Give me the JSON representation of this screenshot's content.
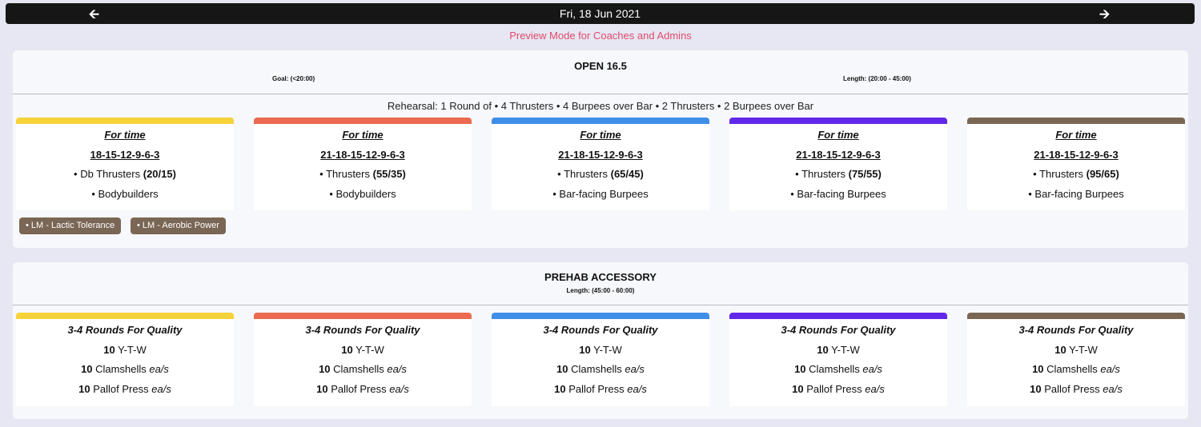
{
  "nav": {
    "date": "Fri, 18 Jun 2021",
    "prev_icon": "arrow-left-icon",
    "next_icon": "arrow-right-icon"
  },
  "preview_text": "Preview Mode for Coaches and Admins",
  "colors": {
    "yellow": "#f6d23a",
    "red": "#eb6a50",
    "blue": "#3f8ee8",
    "purple": "#6228e8",
    "brown": "#7a6654"
  },
  "open": {
    "title": "OPEN 16.5",
    "goal": "Goal: (<20:00)",
    "length": "Length: (20:00 - 45:00)",
    "rehearsal": "Rehearsal: 1 Round of • 4 Thrusters • 4 Burpees over Bar • 2 Thrusters • 2 Burpees over Bar",
    "cards": [
      {
        "format": "For time",
        "reps": "18-15-12-9-6-3",
        "move1_prefix": "• Db Thrusters",
        "move1_load": "(20/15)",
        "move2": "• Bodybuilders"
      },
      {
        "format": "For time",
        "reps": "21-18-15-12-9-6-3",
        "move1_prefix": "• Thrusters",
        "move1_load": "(55/35)",
        "move2": "• Bodybuilders"
      },
      {
        "format": "For time",
        "reps": "21-18-15-12-9-6-3",
        "move1_prefix": "• Thrusters",
        "move1_load": "(65/45)",
        "move2": "• Bar-facing Burpees"
      },
      {
        "format": "For time",
        "reps": "21-18-15-12-9-6-3",
        "move1_prefix": "• Thrusters",
        "move1_load": "(75/55)",
        "move2": "• Bar-facing Burpees"
      },
      {
        "format": "For time",
        "reps": "21-18-15-12-9-6-3",
        "move1_prefix": "• Thrusters",
        "move1_load": "(95/65)",
        "move2": "• Bar-facing Burpees"
      }
    ],
    "tags": [
      "• LM - Lactic Tolerance",
      "• LM - Aerobic Power"
    ]
  },
  "prehab": {
    "title": "PREHAB ACCESSORY",
    "length": "Length: (45:00 - 60:00)",
    "card": {
      "format": "3-4 Rounds For Quality",
      "rows": [
        {
          "num": "10",
          "name": "Y-T-W",
          "suffix": ""
        },
        {
          "num": "10",
          "name": "Clamshells",
          "suffix": "ea/s"
        },
        {
          "num": "10",
          "name": "Pallof Press",
          "suffix": "ea/s"
        }
      ]
    }
  }
}
